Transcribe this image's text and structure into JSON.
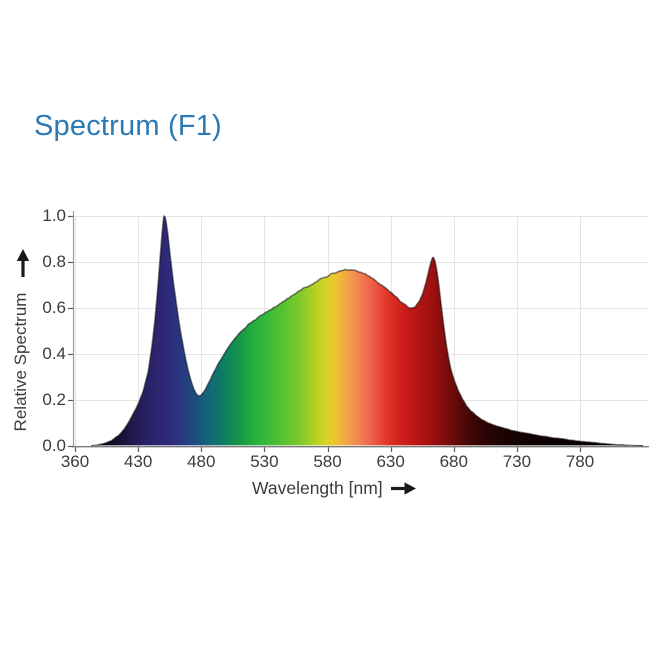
{
  "page": {
    "title": "Spectrum (F1)"
  },
  "colors": {
    "title": "#2b7ab5",
    "axis_text": "#3c3c3c",
    "axis_line": "#9b9b9b",
    "bottom_axis_line": "#7a7a7a",
    "grid_line": "#e4e4e4",
    "tick_mark": "#5a5a5a",
    "arrow": "#1a1a1a",
    "edge_stroke": "rgba(15,8,12,0.5)"
  },
  "chart_data": {
    "type": "area",
    "title": "Spectrum (F1)",
    "xlabel": "Wavelength [nm]",
    "ylabel": "Relative Spectrum",
    "x_ticks": [
      360,
      430,
      480,
      530,
      580,
      630,
      680,
      730,
      780
    ],
    "y_ticks": [
      1.0,
      0.8,
      0.6,
      0.4,
      0.2,
      0.0
    ],
    "y_tick_labels": [
      "1.0",
      "0.8",
      "0.6",
      "0.4",
      "0.2",
      "0.0"
    ],
    "xlim": [
      358,
      830
    ],
    "ylim": [
      0,
      1
    ],
    "grid": true,
    "axis_note": "x tick spacing is uniform in pixels; first interval spans 70 nm (360-430), remaining intervals span 50 nm",
    "features": {
      "blue_peak": {
        "nm": 450,
        "value": 1.0
      },
      "cyan_dip": {
        "nm": 477,
        "value": 0.21
      },
      "broad_peak": {
        "nm": 594,
        "value": 0.76
      },
      "red_dip": {
        "nm": 647,
        "value": 0.59
      },
      "red_peak": {
        "nm": 663,
        "value": 0.81
      }
    },
    "series": [
      {
        "name": "Relative Spectrum",
        "x": [
          378,
          386,
          394,
          401,
          408,
          414,
          420,
          426,
          430,
          434,
          438,
          441,
          443,
          445,
          447,
          449,
          450.5,
          452,
          454,
          456,
          458,
          460,
          462,
          464,
          466,
          468,
          470,
          472,
          474,
          476,
          478,
          480,
          483,
          486,
          489,
          492,
          495,
          498,
          501,
          504,
          507,
          510,
          514,
          518,
          522,
          526,
          530,
          535,
          540,
          545,
          550,
          555,
          560,
          565,
          570,
          575,
          580,
          585,
          590,
          595,
          600,
          605,
          610,
          615,
          620,
          625,
          630,
          635,
          640,
          644,
          647,
          650,
          653,
          656,
          658,
          660,
          662,
          663.5,
          665,
          666.5,
          668,
          670,
          672,
          674,
          676,
          678,
          681,
          684,
          687,
          690,
          694,
          698,
          702,
          707,
          712,
          718,
          724,
          730,
          737,
          744,
          751,
          758,
          765,
          772,
          780,
          787,
          794,
          801,
          808,
          815,
          822,
          830
        ],
        "y": [
          0,
          0.005,
          0.013,
          0.025,
          0.045,
          0.07,
          0.105,
          0.148,
          0.18,
          0.235,
          0.32,
          0.43,
          0.525,
          0.64,
          0.775,
          0.92,
          1.0,
          0.975,
          0.89,
          0.79,
          0.7,
          0.62,
          0.545,
          0.48,
          0.42,
          0.365,
          0.318,
          0.278,
          0.246,
          0.224,
          0.213,
          0.218,
          0.24,
          0.272,
          0.305,
          0.338,
          0.368,
          0.395,
          0.42,
          0.443,
          0.464,
          0.483,
          0.505,
          0.524,
          0.541,
          0.556,
          0.57,
          0.587,
          0.603,
          0.62,
          0.638,
          0.655,
          0.672,
          0.688,
          0.703,
          0.717,
          0.73,
          0.742,
          0.752,
          0.757,
          0.755,
          0.748,
          0.737,
          0.722,
          0.704,
          0.683,
          0.66,
          0.636,
          0.613,
          0.598,
          0.592,
          0.6,
          0.622,
          0.66,
          0.7,
          0.745,
          0.79,
          0.812,
          0.8,
          0.76,
          0.7,
          0.61,
          0.52,
          0.44,
          0.375,
          0.323,
          0.272,
          0.232,
          0.2,
          0.172,
          0.148,
          0.13,
          0.115,
          0.1,
          0.089,
          0.079,
          0.07,
          0.062,
          0.055,
          0.048,
          0.042,
          0.036,
          0.031,
          0.026,
          0.021,
          0.017,
          0.013,
          0.009,
          0.006,
          0.004,
          0.002,
          0
        ]
      }
    ],
    "spectral_gradient": [
      {
        "nm": 378,
        "color": "#0b060e"
      },
      {
        "nm": 400,
        "color": "#120a1e"
      },
      {
        "nm": 412,
        "color": "#191034"
      },
      {
        "nm": 422,
        "color": "#201748"
      },
      {
        "nm": 430,
        "color": "#251c58"
      },
      {
        "nm": 438,
        "color": "#292165"
      },
      {
        "nm": 446,
        "color": "#2c2670"
      },
      {
        "nm": 452,
        "color": "#2d2a78"
      },
      {
        "nm": 458,
        "color": "#2c2f7e"
      },
      {
        "nm": 464,
        "color": "#283880"
      },
      {
        "nm": 470,
        "color": "#22437f"
      },
      {
        "nm": 477,
        "color": "#1b527e"
      },
      {
        "nm": 484,
        "color": "#156179"
      },
      {
        "nm": 491,
        "color": "#107070"
      },
      {
        "nm": 498,
        "color": "#0e7e62"
      },
      {
        "nm": 505,
        "color": "#118c52"
      },
      {
        "nm": 512,
        "color": "#189a48"
      },
      {
        "nm": 519,
        "color": "#21a942"
      },
      {
        "nm": 526,
        "color": "#2cb53d"
      },
      {
        "nm": 533,
        "color": "#3abb38"
      },
      {
        "nm": 541,
        "color": "#4cbf33"
      },
      {
        "nm": 549,
        "color": "#62c52e"
      },
      {
        "nm": 557,
        "color": "#7cc92a"
      },
      {
        "nm": 565,
        "color": "#9ccd26"
      },
      {
        "nm": 572,
        "color": "#bcd124"
      },
      {
        "nm": 578,
        "color": "#d6d326"
      },
      {
        "nm": 584,
        "color": "#e7cb2c"
      },
      {
        "nm": 590,
        "color": "#efb83a"
      },
      {
        "nm": 596,
        "color": "#f2a246"
      },
      {
        "nm": 602,
        "color": "#f28c50"
      },
      {
        "nm": 608,
        "color": "#f17852"
      },
      {
        "nm": 614,
        "color": "#ee644c"
      },
      {
        "nm": 620,
        "color": "#e94e3c"
      },
      {
        "nm": 626,
        "color": "#e23a2c"
      },
      {
        "nm": 632,
        "color": "#d92b22"
      },
      {
        "nm": 638,
        "color": "#cf201c"
      },
      {
        "nm": 645,
        "color": "#c31918"
      },
      {
        "nm": 652,
        "color": "#b51414"
      },
      {
        "nm": 660,
        "color": "#a41111"
      },
      {
        "nm": 668,
        "color": "#8f0e0e"
      },
      {
        "nm": 676,
        "color": "#760b0b"
      },
      {
        "nm": 684,
        "color": "#5c0909"
      },
      {
        "nm": 692,
        "color": "#460707"
      },
      {
        "nm": 700,
        "color": "#330505"
      },
      {
        "nm": 712,
        "color": "#230404"
      },
      {
        "nm": 726,
        "color": "#180303"
      },
      {
        "nm": 742,
        "color": "#100202"
      },
      {
        "nm": 760,
        "color": "#0b0202"
      },
      {
        "nm": 785,
        "color": "#070101"
      },
      {
        "nm": 830,
        "color": "#050101"
      }
    ]
  }
}
